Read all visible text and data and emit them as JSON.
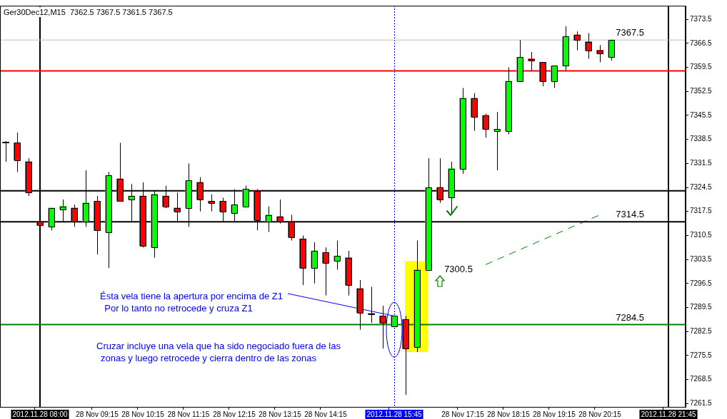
{
  "chart_data": {
    "type": "candlestick",
    "title": "Ger30Dec12,M15  7362.5 7367.5 7361.5 7367.5",
    "categories": [
      null,
      null,
      null,
      "2012.11.28 08:00",
      null,
      null,
      null,
      null,
      "28 Nov 09:15",
      null,
      null,
      null,
      "28 Nov 10:15",
      null,
      null,
      null,
      "28 Nov 11:15",
      null,
      null,
      null,
      "28 Nov 12:15",
      null,
      null,
      null,
      "28 Nov 13:15",
      null,
      null,
      null,
      "28 Nov 14:15",
      null,
      null,
      null,
      null,
      null,
      "2012.11.28 15:45",
      null,
      null,
      null,
      null,
      null,
      "28 Nov 17:15",
      null,
      null,
      null,
      "28 Nov 18:15",
      null,
      null,
      null,
      "28 Nov 19:15",
      null,
      null,
      null,
      "28 Nov 20:15",
      null,
      null,
      null,
      null,
      null,
      "2012.11.28 21:45",
      null
    ],
    "ohlc": [
      [
        7337.5,
        7338,
        7332,
        7337.5
      ],
      [
        7337.5,
        7340.5,
        7329,
        7332.5
      ],
      [
        7332,
        7333,
        7322,
        7323
      ],
      [
        7314.5,
        7314.5,
        7313.5,
        7313.5
      ],
      [
        7313,
        7318.5,
        7312,
        7318.5
      ],
      [
        7318,
        7321,
        7314.5,
        7319
      ],
      [
        7318.5,
        7319.5,
        7313,
        7314.5
      ],
      [
        7314.5,
        7329.5,
        7313,
        7320
      ],
      [
        7320.5,
        7322,
        7305,
        7312
      ],
      [
        7311.5,
        7329,
        7301,
        7328
      ],
      [
        7327,
        7337.5,
        7320.5,
        7320.5
      ],
      [
        7321,
        7325.5,
        7314.5,
        7322
      ],
      [
        7322,
        7326,
        7307,
        7307.5
      ],
      [
        7307,
        7323.5,
        7304,
        7322.5
      ],
      [
        7322,
        7325,
        7318.5,
        7319
      ],
      [
        7318.5,
        7323,
        7314.5,
        7317.5
      ],
      [
        7318.5,
        7331.5,
        7313,
        7326.5
      ],
      [
        7326,
        7327.5,
        7317.5,
        7321
      ],
      [
        7320.5,
        7322.5,
        7317.5,
        7320
      ],
      [
        7320.5,
        7321.5,
        7314.5,
        7317.5
      ],
      [
        7317,
        7324,
        7314.5,
        7319.5
      ],
      [
        7319,
        7325,
        7319,
        7324
      ],
      [
        7323.5,
        7324,
        7312,
        7315
      ],
      [
        7314.5,
        7319,
        7311.5,
        7316.5
      ],
      [
        7316,
        7321,
        7314,
        7314.5
      ],
      [
        7314.5,
        7316.5,
        7309,
        7310
      ],
      [
        7309.5,
        7310.5,
        7296,
        7301
      ],
      [
        7301,
        7308.5,
        7296.5,
        7306
      ],
      [
        7305.5,
        7307,
        7293,
        7302.5
      ],
      [
        7303,
        7309,
        7300.5,
        7304.5
      ],
      [
        7304,
        7306,
        7293,
        7296
      ],
      [
        7295,
        7297.5,
        7283,
        7288
      ],
      [
        7287.5,
        7295.5,
        7285,
        7287.5
      ],
      [
        7287,
        7290,
        7277.5,
        7285
      ],
      [
        7284,
        7287,
        7284,
        7287
      ],
      [
        7286,
        7287,
        7264,
        7277.5
      ],
      [
        7278,
        7309,
        7276.5,
        7300.5
      ],
      [
        7300.5,
        7333,
        7300.5,
        7324.5
      ],
      [
        7324.5,
        7333,
        7320,
        7321
      ],
      [
        7321.5,
        7332,
        7317,
        7330
      ],
      [
        7330,
        7353.5,
        7328.5,
        7350.5
      ],
      [
        7350.5,
        7352,
        7341,
        7345
      ],
      [
        7345.5,
        7346,
        7339,
        7341.5
      ],
      [
        7341,
        7346.5,
        7329.5,
        7341.5
      ],
      [
        7341,
        7359.5,
        7340,
        7355.5
      ],
      [
        7355.5,
        7367.5,
        7355.5,
        7362.5
      ],
      [
        7362,
        7364,
        7358.5,
        7361.5
      ],
      [
        7361,
        7361,
        7354,
        7355.5
      ],
      [
        7355.5,
        7360,
        7353.5,
        7360
      ],
      [
        7360,
        7371.5,
        7358.5,
        7368.5
      ],
      [
        7369,
        7370,
        7364.5,
        7367.5
      ],
      [
        7367,
        7369.5,
        7362,
        7364.5
      ],
      [
        7364.5,
        7366,
        7361,
        7363.5
      ],
      [
        7362.5,
        7367.5,
        7361.5,
        7367.5
      ],
      null,
      null,
      null,
      null,
      null,
      null
    ],
    "colors": [
      "#000000",
      "#ff0000",
      "#ff0000",
      "#ff0000",
      "#00ff00",
      "#00ff00",
      "#ff0000",
      "#00ff00",
      "#ff0000",
      "#00ff00",
      "#ff0000",
      "#00ff00",
      "#ff0000",
      "#00ff00",
      "#ff0000",
      "#ff0000",
      "#00ff00",
      "#ff0000",
      "#ff0000",
      "#ff0000",
      "#00ff00",
      "#00ff00",
      "#ff0000",
      "#00ff00",
      "#ff0000",
      "#ff0000",
      "#ff0000",
      "#00ff00",
      "#ff0000",
      "#00ff00",
      "#ff0000",
      "#ff0000",
      "#000000",
      "#ff0000",
      "#00ff00",
      "#ff0000",
      "#00ff00",
      "#00ff00",
      "#ff0000",
      "#00ff00",
      "#00ff00",
      "#ff0000",
      "#ff0000",
      "#00ff00",
      "#00ff00",
      "#00ff00",
      "#ff0000",
      "#ff0000",
      "#00ff00",
      "#00ff00",
      "#ff0000",
      "#ff0000",
      "#ff0000",
      "#00ff00",
      null,
      null,
      null,
      null,
      null,
      null
    ],
    "ylim": [
      7260.5,
      7377.5
    ],
    "yticks": [
      7261.5,
      7268.5,
      7275.5,
      7282.5,
      7289.5,
      7296.5,
      7303.5,
      7310.5,
      7317.5,
      7324.5,
      7331.5,
      7338.5,
      7345.5,
      7352.5,
      7359.5,
      7366.5,
      7373.5
    ],
    "ref_lines": [
      {
        "axis": "x",
        "value": "2012.11.28 08:00",
        "color": "#000000"
      },
      {
        "axis": "x",
        "value": "2012.11.28 15:45",
        "color": "#0000ff",
        "line_style": "dotted"
      },
      {
        "axis": "x",
        "value": "2012.11.28 21:45",
        "color": "#000000"
      },
      {
        "axis": "y",
        "value": 7367.5,
        "label": "7367.5",
        "color": "#c0c0c0"
      },
      {
        "axis": "y",
        "value": 7358.5,
        "color": "#ff0000"
      },
      {
        "axis": "y",
        "value": 7323.5,
        "color": "#000000"
      },
      {
        "axis": "y",
        "value": 7314.5,
        "label": "7314.5",
        "color": "#000000"
      },
      {
        "axis": "y",
        "value": 7284.5,
        "label": "7284.5",
        "color": "#008000"
      }
    ],
    "annotations": [
      {
        "text": "Ésta vela tiene la apertura por encima de Z1",
        "x": "2012.11.28 15:45",
        "y": 7287
      },
      "Por lo tanto no retrocede y cruza Z1",
      "Cruzar incluye una vela que ha sido negociado fuera de las",
      "zonas y luego retrocede y cierra dentro de las zonas",
      "7300.5"
    ],
    "grid": false,
    "legend": false
  }
}
